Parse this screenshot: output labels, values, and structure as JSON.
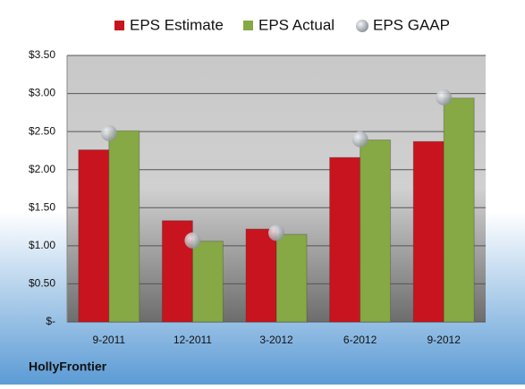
{
  "chart_data": {
    "type": "bar",
    "categories": [
      "9-2011",
      "12-2011",
      "3-2012",
      "6-2012",
      "9-2012"
    ],
    "series": [
      {
        "name": "EPS Estimate",
        "color": "#c8141e",
        "type": "bar",
        "values": [
          2.26,
          1.33,
          1.22,
          2.16,
          2.37
        ]
      },
      {
        "name": "EPS Actual",
        "color": "#86a845",
        "type": "bar",
        "values": [
          2.51,
          1.06,
          1.15,
          2.39,
          2.94
        ]
      },
      {
        "name": "EPS GAAP",
        "color": "#a8adb4",
        "type": "scatter",
        "values": [
          2.48,
          1.07,
          1.17,
          2.4,
          2.95
        ]
      }
    ],
    "ylim": [
      0,
      3.5
    ],
    "yticks": [
      {
        "value": 0,
        "label": "$-"
      },
      {
        "value": 0.5,
        "label": "$0.50"
      },
      {
        "value": 1,
        "label": "$1.00"
      },
      {
        "value": 1.5,
        "label": "$1.50"
      },
      {
        "value": 2,
        "label": "$2.00"
      },
      {
        "value": 2.5,
        "label": "$2.50"
      },
      {
        "value": 3,
        "label": "$3.00"
      },
      {
        "value": 3.5,
        "label": "$3.50"
      }
    ],
    "grid": true,
    "legend": "top",
    "annotation": "HollyFrontier"
  }
}
